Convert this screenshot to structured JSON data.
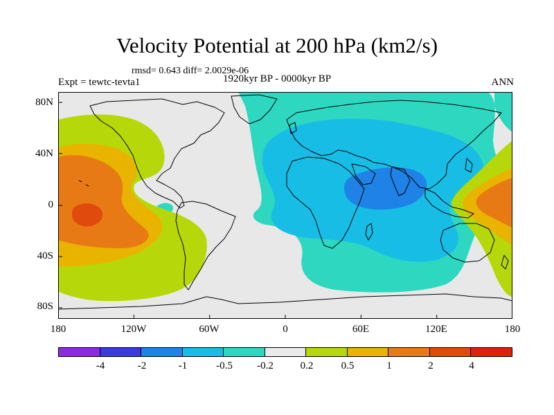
{
  "title": "Velocity Potential at 200 hPa (km2/s)",
  "stats": "rmsd= 0.643 diff= 2.0029e-06",
  "period": "1920kyr BP - 0000kyr BP",
  "experiment": "Expt = tewtc-tevta1",
  "season": "ANN",
  "lat_ticks": [
    "80N",
    "40N",
    "0",
    "40S",
    "80S"
  ],
  "lon_ticks": [
    "180",
    "120W",
    "60W",
    "0",
    "60E",
    "120E",
    "180"
  ],
  "colorbar": {
    "labels": [
      "-4",
      "-2",
      "-1",
      "-0.5",
      "-0.2",
      "0.2",
      "0.5",
      "1",
      "2",
      "4"
    ],
    "colors": [
      "#8a2be2",
      "#3a3adf",
      "#1e82e6",
      "#18bde6",
      "#2ed8c0",
      "#eaeaea",
      "#b6d80a",
      "#e8b400",
      "#e87a16",
      "#e04a0c",
      "#e0200a"
    ]
  },
  "field_colors": {
    "neutral": "#e8e8e8",
    "neg_0_2": "#2ed8c0",
    "neg_0_5": "#18bde6",
    "neg_1": "#1e82e6",
    "pos_0_2": "#b6d80a",
    "pos_0_5": "#e8b400",
    "pos_1": "#e87a16",
    "pos_2": "#e04a0c"
  }
}
